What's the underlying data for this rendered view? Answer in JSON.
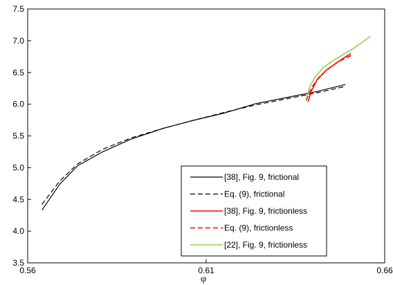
{
  "chart_data": {
    "type": "line",
    "xlabel": "φ",
    "ylabel": "",
    "xlim": [
      0.56,
      0.66
    ],
    "ylim": [
      3.5,
      7.5
    ],
    "xticks": [
      0.56,
      0.61,
      0.66
    ],
    "xtick_labels": [
      "0.56",
      "0.61",
      "0.66"
    ],
    "yticks": [
      3.5,
      4.0,
      4.5,
      5.0,
      5.5,
      6.0,
      6.5,
      7.0,
      7.5
    ],
    "ytick_labels": [
      "3.5",
      "4.0",
      "4.5",
      "5.0",
      "5.5",
      "6.0",
      "6.5",
      "7.0",
      "7.5"
    ],
    "grid": false,
    "legend_position": "bottom-right",
    "series": [
      {
        "name": "[38], Fig. 9, frictional",
        "color": "#000000",
        "dash": "solid",
        "x": [
          0.564,
          0.569,
          0.574,
          0.581,
          0.589,
          0.598,
          0.606,
          0.615,
          0.624,
          0.633,
          0.641,
          0.649
        ],
        "y": [
          4.33,
          4.74,
          5.03,
          5.25,
          5.45,
          5.62,
          5.74,
          5.86,
          6.01,
          6.11,
          6.2,
          6.31
        ]
      },
      {
        "name": "Eq. (9), frictional",
        "color": "#000000",
        "dash": "dashed",
        "x": [
          0.564,
          0.569,
          0.574,
          0.581,
          0.589,
          0.598,
          0.606,
          0.615,
          0.624,
          0.633,
          0.641,
          0.649
        ],
        "y": [
          4.42,
          4.79,
          5.06,
          5.29,
          5.47,
          5.62,
          5.74,
          5.87,
          5.99,
          6.09,
          6.18,
          6.28
        ]
      },
      {
        "name": "[38], Fig. 9, frictionless",
        "color": "#ff0000",
        "dash": "solid",
        "x": [
          0.6385,
          0.6395,
          0.641,
          0.6435,
          0.647,
          0.6505
        ],
        "y": [
          6.04,
          6.21,
          6.38,
          6.53,
          6.67,
          6.8
        ]
      },
      {
        "name": "Eq. (9), frictionless",
        "color": "#ff0000",
        "dash": "dashed",
        "x": [
          0.638,
          0.6395,
          0.6415,
          0.644,
          0.647,
          0.651
        ],
        "y": [
          6.06,
          6.26,
          6.42,
          6.55,
          6.67,
          6.78
        ]
      },
      {
        "name": "[22], Fig. 9, frictionless",
        "color": "#92d050",
        "dash": "solid",
        "x": [
          0.638,
          0.639,
          0.6405,
          0.643,
          0.6465,
          0.651,
          0.656
        ],
        "y": [
          6.08,
          6.27,
          6.43,
          6.59,
          6.72,
          6.87,
          7.07
        ]
      }
    ]
  }
}
